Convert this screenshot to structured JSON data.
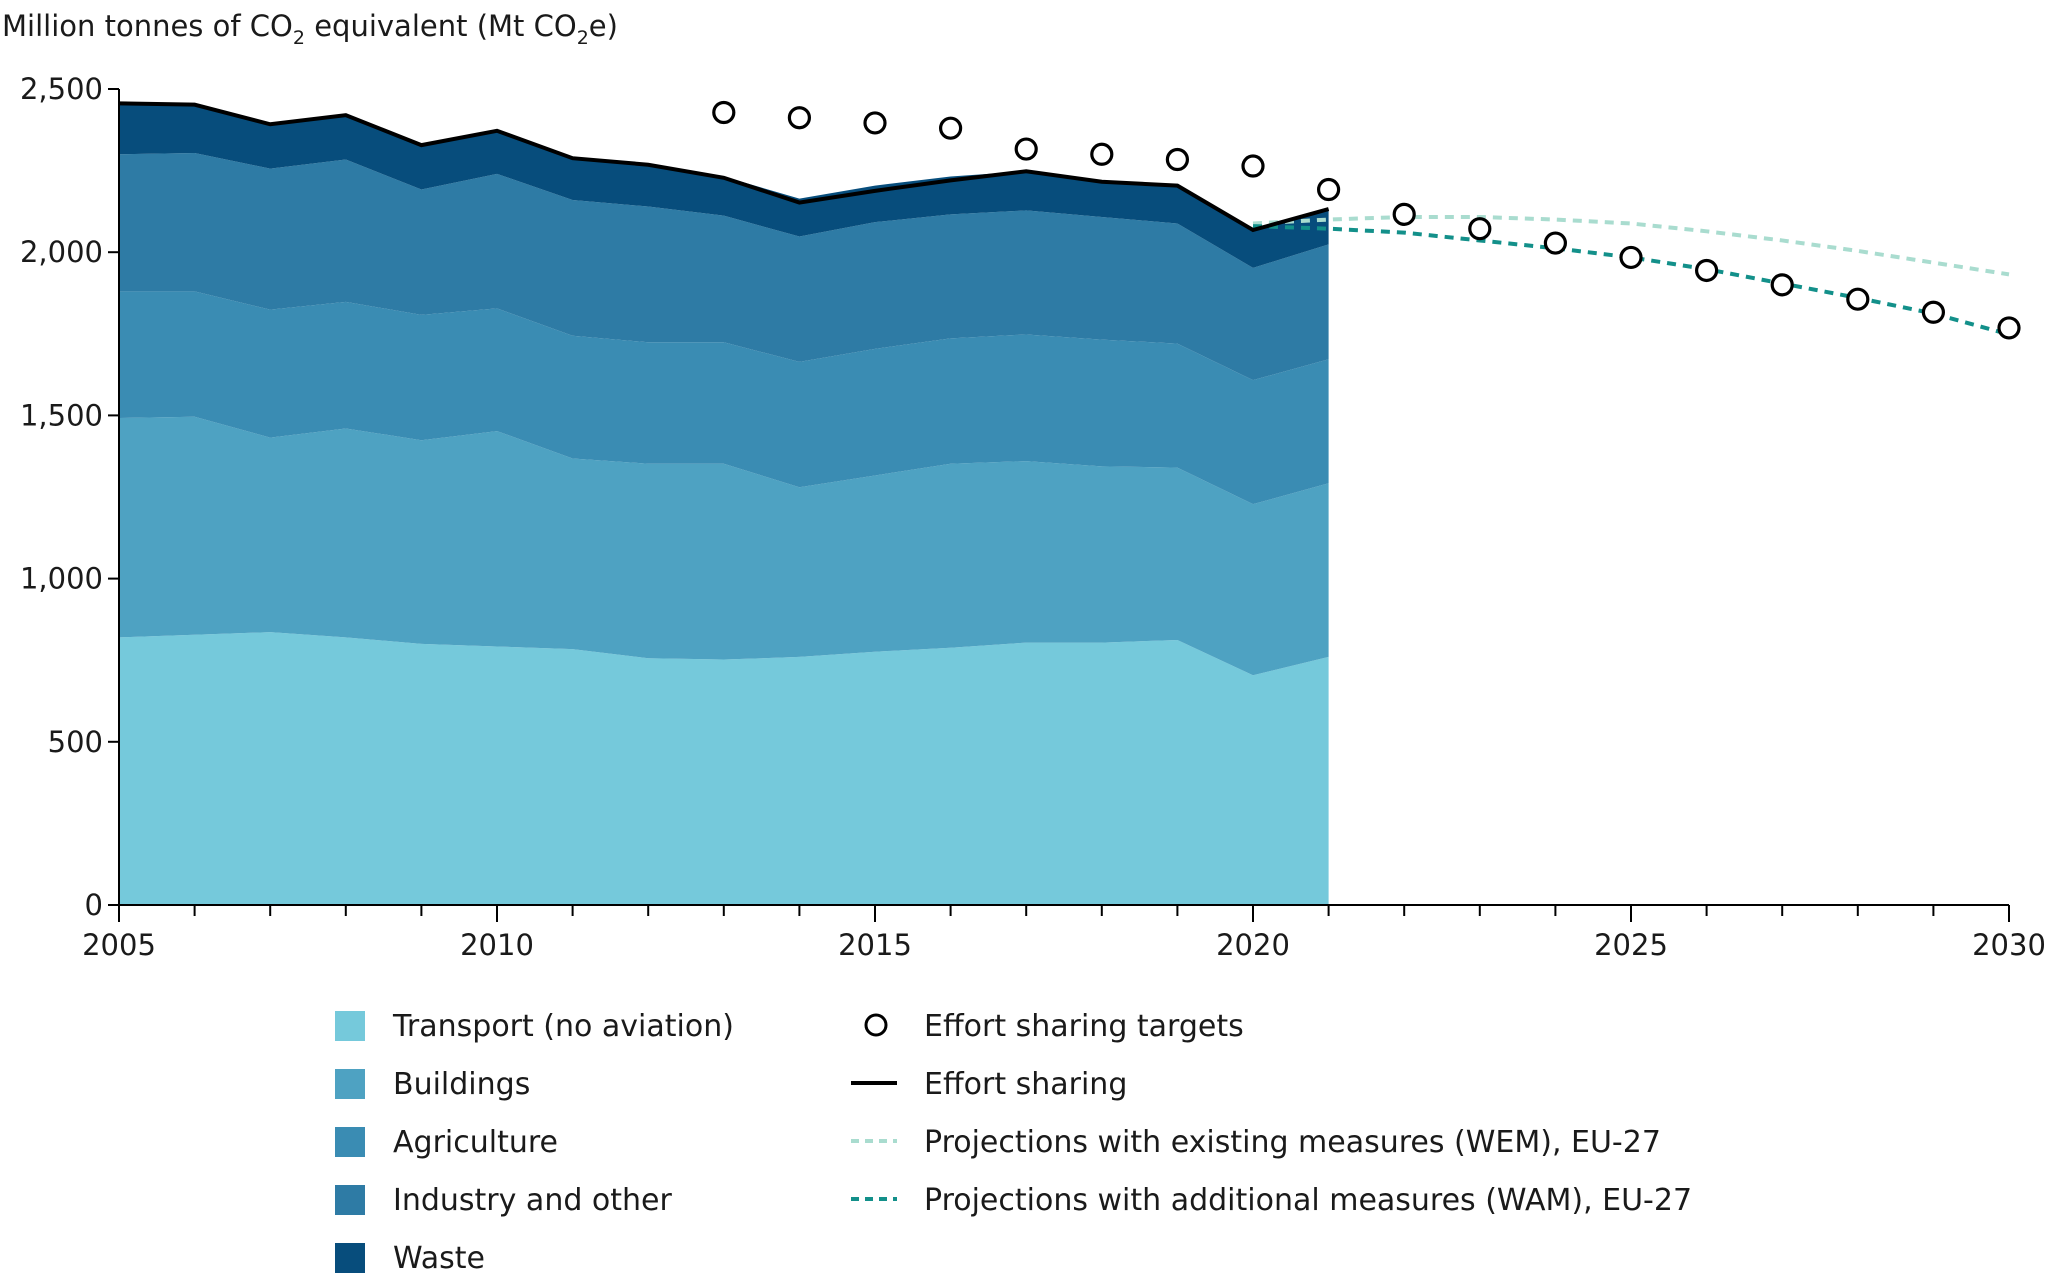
{
  "chart_data": {
    "type": "area",
    "title": "",
    "ylabel_parts": {
      "prefix": "Million tonnes of CO",
      "sub": "2",
      "mid": " equivalent (Mt CO",
      "sub2": "2",
      "suffix": "e)"
    },
    "ylabel": "Million tonnes of CO2 equivalent (Mt CO2e)",
    "xlabel": "",
    "xlim": [
      2005,
      2030
    ],
    "ylim": [
      0,
      2500
    ],
    "x_ticks": [
      2005,
      2010,
      2015,
      2020,
      2025,
      2030
    ],
    "x_tick_labels": [
      "2005",
      "2010",
      "2015",
      "2020",
      "2025",
      "2030"
    ],
    "y_ticks": [
      0,
      500,
      1000,
      1500,
      2000,
      2500
    ],
    "y_tick_labels": [
      "0",
      "500",
      "1,000",
      "1,500",
      "2,000",
      "2,500"
    ],
    "grid": false,
    "legend_position": "bottom",
    "stacked_years": [
      2005,
      2006,
      2007,
      2008,
      2009,
      2010,
      2011,
      2012,
      2013,
      2014,
      2015,
      2016,
      2017,
      2018,
      2019,
      2020,
      2021
    ],
    "series": [
      {
        "name": "Transport (no aviation)",
        "kind": "area",
        "color": "#75c9db",
        "values": [
          820,
          828,
          836,
          820,
          800,
          792,
          784,
          756,
          752,
          760,
          776,
          788,
          804,
          804,
          812,
          704,
          760
        ]
      },
      {
        "name": "Buildings",
        "kind": "area",
        "color": "#4ea2c2",
        "values": [
          672,
          668,
          596,
          640,
          624,
          660,
          584,
          596,
          600,
          520,
          540,
          564,
          556,
          540,
          528,
          524,
          532
        ]
      },
      {
        "name": "Agriculture",
        "kind": "area",
        "color": "#3a8cb3",
        "values": [
          388,
          384,
          392,
          388,
          384,
          376,
          376,
          372,
          372,
          384,
          388,
          384,
          388,
          388,
          380,
          380,
          380
        ]
      },
      {
        "name": "Industry and other",
        "kind": "area",
        "color": "#2e7ba5",
        "values": [
          420,
          424,
          432,
          436,
          384,
          412,
          416,
          416,
          388,
          384,
          388,
          380,
          380,
          376,
          368,
          344,
          352
        ]
      },
      {
        "name": "Waste",
        "kind": "area",
        "color": "#074d7c",
        "values": [
          156,
          148,
          136,
          136,
          136,
          132,
          128,
          128,
          120,
          116,
          112,
          116,
          120,
          108,
          116,
          116,
          108
        ]
      }
    ],
    "effort_sharing": {
      "name": "Effort sharing",
      "color": "#000000",
      "years": [
        2005,
        2006,
        2007,
        2008,
        2009,
        2010,
        2011,
        2012,
        2013,
        2014,
        2015,
        2016,
        2017,
        2018,
        2019,
        2020,
        2021
      ],
      "values": [
        2456,
        2452,
        2392,
        2420,
        2328,
        2372,
        2288,
        2268,
        2228,
        2152,
        2188,
        2220,
        2248,
        2216,
        2204,
        2068,
        2132
      ]
    },
    "targets": {
      "name": "Effort sharing targets",
      "color": "#000000",
      "years": [
        2013,
        2014,
        2015,
        2016,
        2017,
        2018,
        2019,
        2020,
        2021,
        2022,
        2023,
        2024,
        2025,
        2026,
        2027,
        2028,
        2029,
        2030
      ],
      "values": [
        2428,
        2412,
        2396,
        2380,
        2316,
        2300,
        2284,
        2264,
        2192,
        2116,
        2072,
        2028,
        1984,
        1944,
        1900,
        1856,
        1816,
        1768
      ]
    },
    "wem": {
      "name": "Projections with existing measures (WEM), EU-27",
      "color": "#a9dccf",
      "years": [
        2020,
        2021,
        2022,
        2023,
        2024,
        2025,
        2026,
        2027,
        2028,
        2029,
        2030
      ],
      "values": [
        2088,
        2100,
        2108,
        2108,
        2100,
        2088,
        2064,
        2036,
        2004,
        1968,
        1932
      ]
    },
    "wam": {
      "name": "Projections with additional measures (WAM), EU-27",
      "color": "#13908a",
      "years": [
        2020,
        2021,
        2022,
        2023,
        2024,
        2025,
        2026,
        2027,
        2028,
        2029,
        2030
      ],
      "values": [
        2080,
        2072,
        2060,
        2036,
        2012,
        1984,
        1948,
        1904,
        1860,
        1812,
        1748
      ]
    }
  },
  "legend": {
    "left": [
      "Transport (no aviation)",
      "Buildings",
      "Agriculture",
      "Industry and other",
      "Waste"
    ],
    "right": [
      "Effort sharing targets",
      "Effort sharing",
      "Projections with existing measures (WEM), EU-27",
      "Projections with additional measures (WAM), EU-27"
    ]
  }
}
